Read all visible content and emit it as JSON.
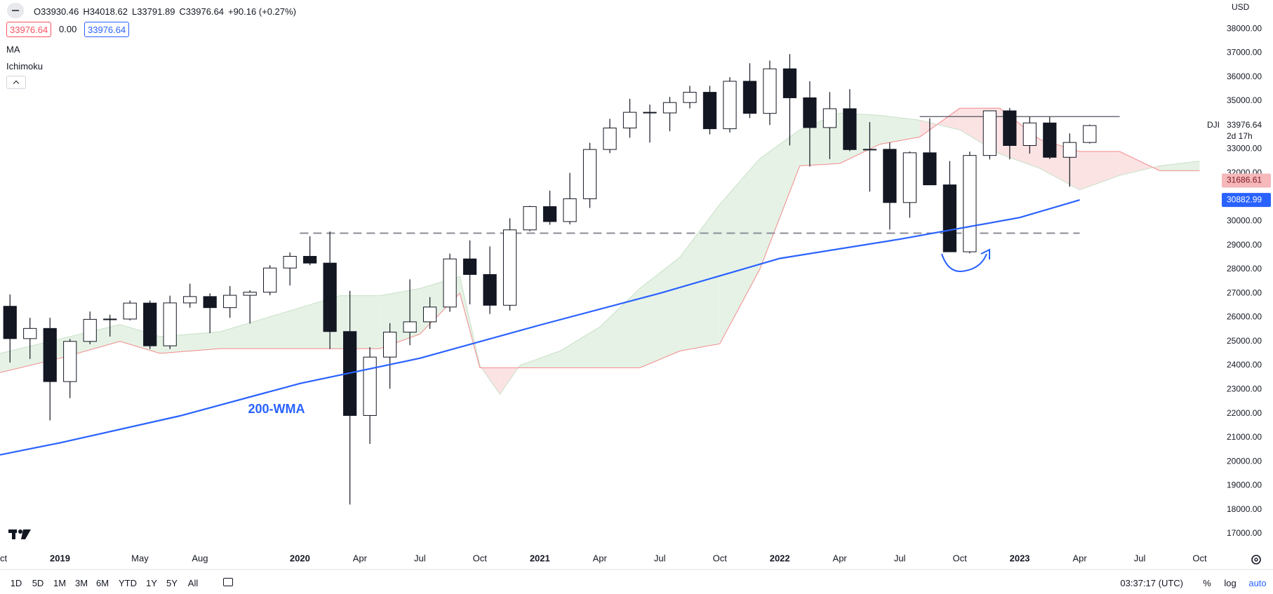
{
  "header": {
    "ohlc": [
      "O33930.46",
      "H34018.62",
      "L33791.89",
      "C33976.64",
      "+90.16 (+0.27%)"
    ],
    "spread": [
      "33976.64",
      "0.00",
      "33976.64"
    ],
    "indicators": [
      "MA",
      "Ichimoku"
    ],
    "currency": "USD",
    "symbol": "DJI",
    "countdown": "2d 17h"
  },
  "toolbar": {
    "ranges": [
      "1D",
      "5D",
      "1M",
      "3M",
      "6M",
      "YTD",
      "1Y",
      "5Y",
      "All"
    ],
    "clock": "03:37:17 (UTC)",
    "toggles": [
      "%",
      "log",
      "auto"
    ]
  },
  "chart_data": {
    "type": "candlestick",
    "x": [
      "2018-10",
      "2018-11",
      "2018-12",
      "2019-01",
      "2019-02",
      "2019-03",
      "2019-04",
      "2019-05",
      "2019-06",
      "2019-07",
      "2019-08",
      "2019-09",
      "2019-10",
      "2019-11",
      "2019-12",
      "2020-01",
      "2020-02",
      "2020-03",
      "2020-04",
      "2020-05",
      "2020-06",
      "2020-07",
      "2020-08",
      "2020-09",
      "2020-10",
      "2020-11",
      "2020-12",
      "2021-01",
      "2021-02",
      "2021-03",
      "2021-04",
      "2021-05",
      "2021-06",
      "2021-07",
      "2021-08",
      "2021-09",
      "2021-10",
      "2021-11",
      "2021-12",
      "2022-01",
      "2022-02",
      "2022-03",
      "2022-04",
      "2022-05",
      "2022-06",
      "2022-07",
      "2022-08",
      "2022-09",
      "2022-10",
      "2022-11",
      "2022-12",
      "2023-01",
      "2023-02",
      "2023-03",
      "2023-04"
    ],
    "open": [
      26460,
      25115,
      25538,
      23327,
      24999,
      25916,
      25929,
      26593,
      24815,
      26600,
      26864,
      26403,
      26917,
      27046,
      28051,
      28538,
      28256,
      25409,
      21917,
      24346,
      25383,
      25813,
      26428,
      28430,
      27782,
      26502,
      29638,
      30606,
      29983,
      30932,
      32982,
      33875,
      34529,
      34503,
      34935,
      35361,
      33844,
      35820,
      34484,
      36338,
      35132,
      33893,
      34678,
      32977,
      32990,
      30775,
      32845,
      31510,
      28726,
      32733,
      34590,
      33147,
      34086,
      32657,
      33274
    ],
    "high": [
      26950,
      25980,
      25980,
      25100,
      26240,
      26110,
      26700,
      26700,
      26900,
      27400,
      27000,
      27300,
      27130,
      28170,
      28700,
      29370,
      29570,
      27100,
      24760,
      25760,
      27580,
      26840,
      28650,
      29200,
      28950,
      30120,
      30640,
      31270,
      32010,
      33260,
      34260,
      35090,
      34850,
      35170,
      35630,
      35630,
      35990,
      36570,
      36680,
      36950,
      35820,
      35370,
      35490,
      34120,
      33270,
      32900,
      34280,
      32500,
      32890,
      34600,
      34710,
      34340,
      34340,
      33650,
      34018.62
    ],
    "low": [
      24120,
      24270,
      21712,
      22638,
      24880,
      25200,
      25870,
      24680,
      24680,
      26400,
      25340,
      25980,
      25740,
      26920,
      27325,
      28170,
      24680,
      18214,
      20735,
      23030,
      24840,
      25520,
      26230,
      26540,
      26140,
      26280,
      29580,
      29850,
      29870,
      30550,
      32830,
      33470,
      33270,
      33740,
      34690,
      33610,
      33690,
      34290,
      34000,
      33150,
      32270,
      32580,
      32910,
      31230,
      29650,
      30140,
      31500,
      28720,
      28660,
      32570,
      32570,
      32810,
      32580,
      31430,
      33230
    ],
    "close": [
      25115,
      25538,
      23327,
      24999,
      25916,
      25929,
      26593,
      24815,
      26600,
      26864,
      26403,
      26917,
      27046,
      28051,
      28538,
      28256,
      25409,
      21917,
      24346,
      25383,
      25813,
      26428,
      28430,
      27782,
      26502,
      29638,
      30606,
      29983,
      30932,
      32982,
      33875,
      34529,
      34503,
      34935,
      35361,
      33844,
      35820,
      34484,
      36338,
      35132,
      33893,
      34678,
      32977,
      32990,
      30775,
      32845,
      31510,
      28726,
      32733,
      34590,
      33147,
      34086,
      32657,
      33274,
      33976.64
    ],
    "up_color": "#ffffff",
    "down_color": "#131722",
    "outline_color": "#131722",
    "wma": {
      "x": [
        "2018-10",
        "2019-01",
        "2019-07",
        "2020-01",
        "2020-07",
        "2021-01",
        "2021-07",
        "2022-01",
        "2022-07",
        "2023-01",
        "2023-04"
      ],
      "values": [
        20280,
        20780,
        21900,
        23250,
        24300,
        25680,
        27000,
        28450,
        29250,
        30150,
        30883
      ],
      "color": "#2962ff"
    },
    "annotation": "200-WMA",
    "ichimoku": {
      "x": [
        "2018-10",
        "2019-01",
        "2019-04",
        "2019-06",
        "2019-09",
        "2020-01",
        "2020-03",
        "2020-05",
        "2020-07",
        "2020-09",
        "2020-10",
        "2020-11",
        "2020-12",
        "2021-02",
        "2021-04",
        "2021-06",
        "2021-08",
        "2021-10",
        "2021-12",
        "2022-02",
        "2022-04",
        "2022-06",
        "2022-08",
        "2022-10",
        "2022-12",
        "2023-02",
        "2023-04",
        "2023-06",
        "2023-08",
        "2023-10"
      ],
      "span_a": [
        24500,
        25100,
        25700,
        25200,
        25400,
        26400,
        26900,
        26900,
        27200,
        27700,
        24000,
        22800,
        24000,
        24600,
        25600,
        27200,
        28500,
        30700,
        32600,
        33800,
        34500,
        34400,
        34200,
        33800,
        32800,
        32200,
        31300,
        31900,
        32300,
        32500
      ],
      "span_b": [
        23700,
        24300,
        25000,
        24500,
        24700,
        24700,
        24700,
        24700,
        25300,
        27000,
        23900,
        23900,
        23900,
        23900,
        23900,
        23900,
        24600,
        24900,
        28000,
        32300,
        32400,
        33200,
        33500,
        34700,
        34700,
        33400,
        32900,
        32900,
        32100,
        32100
      ],
      "bull_color": "#e6f2e6",
      "bear_color": "#fbe3e4",
      "line_a_color": "#c8e0c8",
      "line_b_color": "#f28b8b"
    },
    "levels": [
      {
        "value": 29500,
        "x": [
          "2020-01",
          "2023-04"
        ],
        "style": "dashed",
        "color": "#8a8d96"
      },
      {
        "value": 34350,
        "x": [
          "2022-08",
          "2023-06"
        ],
        "style": "solid",
        "color": "#50535e"
      }
    ],
    "price_labels": [
      {
        "value": 33976.64,
        "bg": "#ffffff",
        "fg": "#131722"
      },
      {
        "value": 31686.61,
        "bg": "#f5b8bb",
        "fg": "#801922"
      },
      {
        "value": 30882.99,
        "bg": "#2962ff",
        "fg": "#ffffff"
      }
    ],
    "xlim": [
      "2018-10",
      "2023-11"
    ],
    "xticks": [
      {
        "value": "2018-10",
        "label": "Oct"
      },
      {
        "value": "2019-01",
        "label": "2019"
      },
      {
        "value": "2019-05",
        "label": "May"
      },
      {
        "value": "2019-08",
        "label": "Aug"
      },
      {
        "value": "2020-01",
        "label": "2020"
      },
      {
        "value": "2020-04",
        "label": "Apr"
      },
      {
        "value": "2020-07",
        "label": "Jul"
      },
      {
        "value": "2020-10",
        "label": "Oct"
      },
      {
        "value": "2021-01",
        "label": "2021"
      },
      {
        "value": "2021-04",
        "label": "Apr"
      },
      {
        "value": "2021-07",
        "label": "Jul"
      },
      {
        "value": "2021-10",
        "label": "Oct"
      },
      {
        "value": "2022-01",
        "label": "2022"
      },
      {
        "value": "2022-04",
        "label": "Apr"
      },
      {
        "value": "2022-07",
        "label": "Jul"
      },
      {
        "value": "2022-10",
        "label": "Oct"
      },
      {
        "value": "2023-01",
        "label": "2023"
      },
      {
        "value": "2023-04",
        "label": "Apr"
      },
      {
        "value": "2023-07",
        "label": "Jul"
      },
      {
        "value": "2023-10",
        "label": "Oct"
      }
    ],
    "ylim": [
      16300,
      39200
    ],
    "yticks": [
      {
        "value": 17000,
        "label": "17000.00"
      },
      {
        "value": 18000,
        "label": "18000.00"
      },
      {
        "value": 19000,
        "label": "19000.00"
      },
      {
        "value": 20000,
        "label": "20000.00"
      },
      {
        "value": 21000,
        "label": "21000.00"
      },
      {
        "value": 22000,
        "label": "22000.00"
      },
      {
        "value": 23000,
        "label": "23000.00"
      },
      {
        "value": 24000,
        "label": "24000.00"
      },
      {
        "value": 25000,
        "label": "25000.00"
      },
      {
        "value": 26000,
        "label": "26000.00"
      },
      {
        "value": 27000,
        "label": "27000.00"
      },
      {
        "value": 28000,
        "label": "28000.00"
      },
      {
        "value": 29000,
        "label": "29000.00"
      },
      {
        "value": 30000,
        "label": "30000.00"
      },
      {
        "value": 31000,
        "label": "31000.00"
      },
      {
        "value": 32000,
        "label": "32000.00"
      },
      {
        "value": 33000,
        "label": "33000.00"
      },
      {
        "value": 34000,
        "label": "34000.00"
      },
      {
        "value": 35000,
        "label": "35000.00"
      },
      {
        "value": 36000,
        "label": "36000.00"
      },
      {
        "value": 37000,
        "label": "37000.00"
      },
      {
        "value": 38000,
        "label": "38000.00"
      }
    ],
    "grid": false
  }
}
